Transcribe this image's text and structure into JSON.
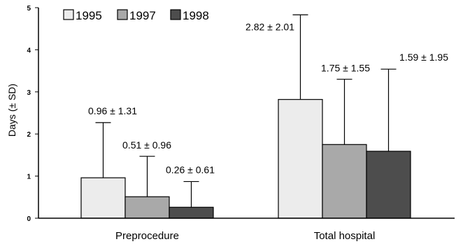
{
  "chart_data": {
    "type": "bar",
    "ylabel": "Days (± SD)",
    "ylim": [
      0,
      5
    ],
    "yticks": [
      "0",
      "1",
      "2",
      "3",
      "4",
      "5"
    ],
    "categories": [
      "Preprocedure",
      "Total hospital"
    ],
    "legend_position": "top-left",
    "series": [
      {
        "name": "1995",
        "color": "#ececec",
        "values": [
          0.96,
          2.82
        ],
        "sd": [
          1.31,
          2.01
        ],
        "labels": [
          "0.96 ± 1.31",
          "2.82 ± 2.01"
        ]
      },
      {
        "name": "1997",
        "color": "#a9a9a9",
        "values": [
          0.51,
          1.75
        ],
        "sd": [
          0.96,
          1.55
        ],
        "labels": [
          "0.51 ± 0.96",
          "1.75 ± 1.55"
        ]
      },
      {
        "name": "1998",
        "color": "#4d4d4d",
        "values": [
          0.26,
          1.59
        ],
        "sd": [
          0.61,
          1.95
        ],
        "labels": [
          "0.26 ± 0.61",
          "1.59 ± 1.95"
        ]
      }
    ]
  }
}
